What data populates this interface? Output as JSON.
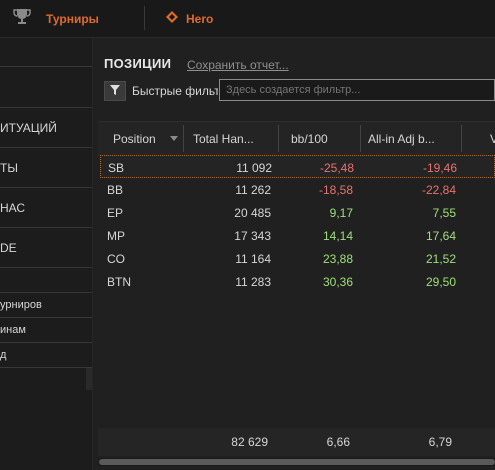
{
  "topbar": {
    "tournaments_label": "Турниры",
    "hero_label": "Hero"
  },
  "sidebar": {
    "items": [
      {
        "label": "ИТУАЦИЙ"
      },
      {
        "label": "ТЫ"
      },
      {
        "label": "НАС"
      },
      {
        "label": "DE"
      },
      {
        "label": "урниров"
      },
      {
        "label": "инам"
      },
      {
        "label": "д"
      }
    ]
  },
  "panel": {
    "title": "ПОЗИЦИИ",
    "save_link": "Сохранить отчет...",
    "quick_filters_label": "Быстрые фильтры",
    "filter_placeholder": "Здесь создается фильтр..."
  },
  "table": {
    "columns": [
      "Position",
      "Total Han...",
      "bb/100",
      "All-in Adj b...",
      "V"
    ],
    "rows": [
      {
        "position": "SB",
        "total": "11 092",
        "bb100": "-25,48",
        "allin": "-19,46"
      },
      {
        "position": "BB",
        "total": "11 262",
        "bb100": "-18,58",
        "allin": "-22,84"
      },
      {
        "position": "EP",
        "total": "20 485",
        "bb100": "9,17",
        "allin": "7,55"
      },
      {
        "position": "MP",
        "total": "17 343",
        "bb100": "14,14",
        "allin": "17,64"
      },
      {
        "position": "CO",
        "total": "11 164",
        "bb100": "23,88",
        "allin": "21,52"
      },
      {
        "position": "BTN",
        "total": "11 283",
        "bb100": "30,36",
        "allin": "29,50"
      }
    ],
    "totals": {
      "total": "82 629",
      "bb100": "6,66",
      "allin": "6,79"
    }
  },
  "colors": {
    "accent": "#e06a2c",
    "negative": "#e8736f",
    "positive": "#9ee07a"
  }
}
